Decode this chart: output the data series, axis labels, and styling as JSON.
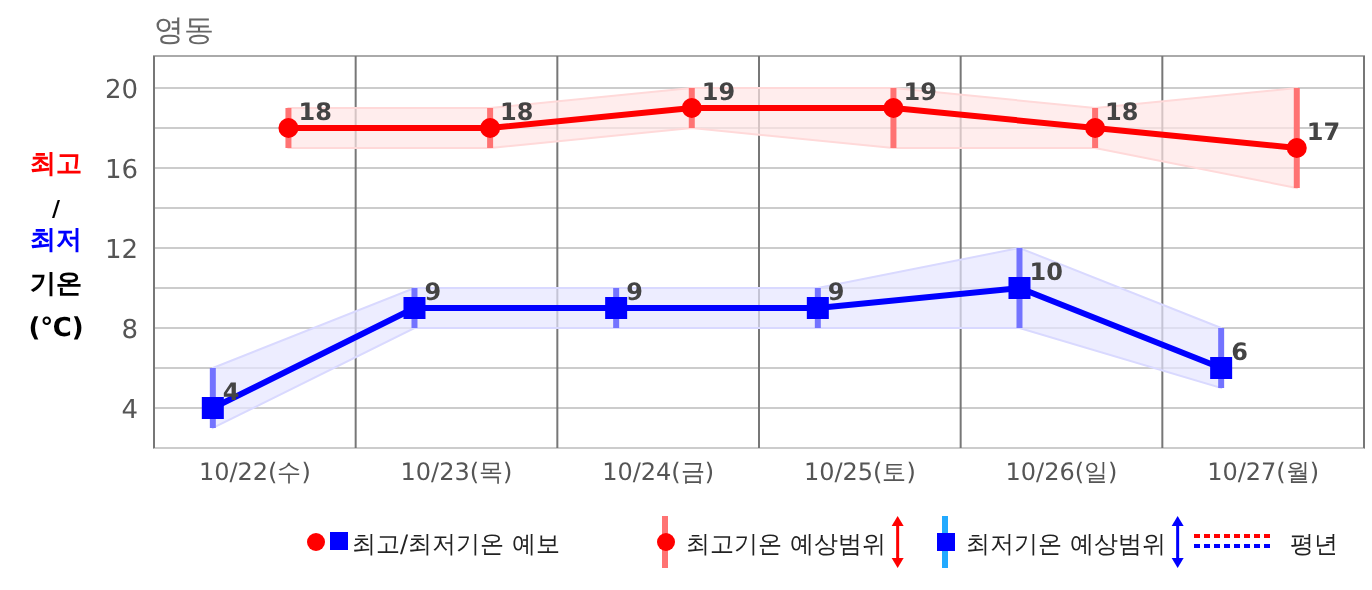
{
  "chart_data": {
    "type": "line",
    "title": "영동",
    "ylabel": "최고/최저 기온 (℃)",
    "xlim": [
      "--10-22T00:00",
      "--10-28T00:00"
    ],
    "xticks": [
      {
        "value": "--10-22T00:00",
        "label": null
      },
      {
        "value": "--10-22T12:00",
        "label": "10/22(수)"
      },
      {
        "value": "--10-23T00:00",
        "label": null
      },
      {
        "value": "--10-23T12:00",
        "label": "10/23(목)"
      },
      {
        "value": "--10-24T00:00",
        "label": null
      },
      {
        "value": "--10-24T12:00",
        "label": "10/24(금)"
      },
      {
        "value": "--10-25T00:00",
        "label": null
      },
      {
        "value": "--10-25T12:00",
        "label": "10/25(토)"
      },
      {
        "value": "--10-26T00:00",
        "label": null
      },
      {
        "value": "--10-26T12:00",
        "label": "10/26(일)"
      },
      {
        "value": "--10-27T00:00",
        "label": null
      },
      {
        "value": "--10-27T12:00",
        "label": "10/27(월)"
      },
      {
        "value": "--10-28T00:00",
        "label": null
      }
    ],
    "ylim": [
      2,
      21.6
    ],
    "yticks": [
      {
        "value": 2,
        "label": null
      },
      4,
      {
        "value": 6,
        "label": null
      },
      8,
      {
        "value": 10,
        "label": null
      },
      12,
      {
        "value": 14,
        "label": null
      },
      16,
      {
        "value": 18,
        "label": null
      },
      20
    ],
    "grid": true,
    "data_labels": true,
    "series": [
      {
        "color": "#ff0000",
        "marker": "circle",
        "x": [
          "--10-22T16:00",
          "--10-23T16:00",
          "--10-24T16:00",
          "--10-25T16:00",
          "--10-26T16:00",
          "--10-27T16:00"
        ],
        "values": [
          18,
          18,
          19,
          19,
          18,
          17
        ],
        "errors": [
          [
            17,
            19
          ],
          [
            17,
            19
          ],
          [
            18,
            20
          ],
          [
            17,
            20
          ],
          [
            17,
            19
          ],
          [
            15,
            20
          ]
        ],
        "lower": [
          17,
          17,
          18,
          17,
          17,
          15
        ],
        "upper": [
          19,
          19,
          20,
          20,
          19,
          20
        ]
      },
      {
        "color": "#0000ff",
        "marker": "square",
        "x": [
          "--10-22T07:00",
          "--10-23T07:00",
          "--10-24T07:00",
          "--10-25T07:00",
          "--10-26T07:00",
          "--10-27T07:00"
        ],
        "values": [
          4,
          9,
          9,
          9,
          10,
          6
        ],
        "errors": [
          [
            3,
            6
          ],
          [
            8,
            10
          ],
          [
            8,
            10
          ],
          [
            8,
            10
          ],
          [
            8,
            12
          ],
          [
            5,
            8
          ]
        ],
        "lower": [
          3,
          8,
          8,
          8,
          8,
          5
        ],
        "upper": [
          6,
          10,
          10,
          10,
          12,
          8
        ]
      }
    ],
    "annotations": [
      "최고/최저기온 예보",
      "최고기온 예상범위",
      "최저기온 예상범위",
      "평년"
    ]
  }
}
